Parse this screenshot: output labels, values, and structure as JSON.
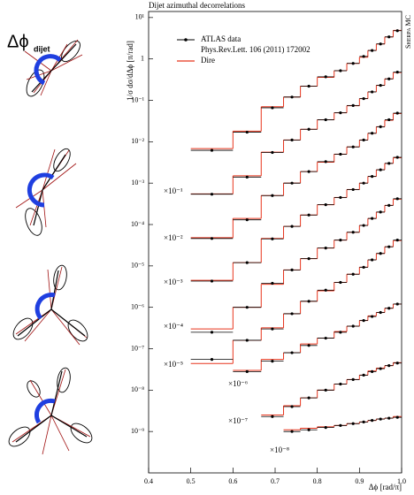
{
  "chart_data": {
    "type": "step",
    "title": "Dijet azimuthal decorrelations",
    "y_label": "1/σ dσ/dΔϕ [π/rad]",
    "x_label": "Δϕ [rad/π]",
    "side_text": "Sherpa MC",
    "side_label": "Δϕ",
    "side_label_sub": "dijet",
    "log_y": true,
    "xlim": [
      0.4,
      1.0
    ],
    "ylim": [
      1e-10,
      14
    ],
    "xticks": [
      0.4,
      0.5,
      0.6,
      0.7,
      0.8,
      0.9,
      {
        "value": 1,
        "label": "1.0"
      }
    ],
    "yticks": [
      {
        "value": 10,
        "label": "10¹"
      },
      1,
      {
        "value": 0.1,
        "label": "10⁻¹"
      },
      {
        "value": 0.01,
        "label": "10⁻²"
      },
      {
        "value": 0.001,
        "label": "10⁻³"
      },
      {
        "value": 0.0001,
        "label": "10⁻⁴"
      },
      {
        "value": 1e-05,
        "label": "10⁻⁵"
      },
      {
        "value": 1e-06,
        "label": "10⁻⁶"
      },
      {
        "value": 1e-07,
        "label": "10⁻⁷"
      },
      {
        "value": 1e-08,
        "label": "10⁻⁸"
      },
      {
        "value": 1e-09,
        "label": "10⁻⁹"
      }
    ],
    "legend": [
      {
        "name": "ATLAS data",
        "color": "#000000"
      },
      {
        "name": "Phys.Rev.Lett. 106 (2011) 172002"
      },
      {
        "name": "Dire",
        "color": "#e8341c"
      }
    ],
    "series": [
      {
        "bins": [
          0.5,
          0.6,
          0.667,
          0.72,
          0.76,
          0.8,
          0.84,
          0.87,
          0.9,
          0.92,
          0.94,
          0.96,
          0.98,
          1.0
        ],
        "values": [
          0.0062,
          0.017,
          0.066,
          0.12,
          0.22,
          0.37,
          0.52,
          0.78,
          1.15,
          1.6,
          2.3,
          3.4,
          4.8
        ],
        "dire": [
          0.0068,
          0.018,
          0.07,
          0.12,
          0.22,
          0.36,
          0.52,
          0.78,
          1.1,
          1.6,
          2.3,
          3.4,
          4.9
        ]
      },
      {
        "scale": "×10⁻¹",
        "bins": [
          0.5,
          0.6,
          0.667,
          0.72,
          0.76,
          0.8,
          0.84,
          0.87,
          0.9,
          0.92,
          0.94,
          0.96,
          0.98,
          1.0
        ],
        "values": [
          0.00054,
          0.0014,
          0.0055,
          0.011,
          0.02,
          0.034,
          0.05,
          0.075,
          0.11,
          0.16,
          0.23,
          0.33,
          0.48
        ],
        "dire": [
          0.00055,
          0.0015,
          0.0056,
          0.011,
          0.02,
          0.034,
          0.05,
          0.074,
          0.11,
          0.16,
          0.23,
          0.33,
          0.47
        ]
      },
      {
        "scale": "×10⁻²",
        "bins": [
          0.5,
          0.6,
          0.667,
          0.72,
          0.76,
          0.8,
          0.84,
          0.87,
          0.9,
          0.92,
          0.94,
          0.96,
          0.98,
          1.0
        ],
        "values": [
          4.6e-05,
          0.00013,
          0.0005,
          0.001,
          0.0019,
          0.0033,
          0.005,
          0.0075,
          0.011,
          0.016,
          0.023,
          0.034,
          0.049
        ],
        "dire": [
          4.8e-05,
          0.00014,
          0.0005,
          0.001,
          0.0019,
          0.0032,
          0.005,
          0.0075,
          0.011,
          0.016,
          0.023,
          0.033,
          0.048
        ]
      },
      {
        "scale": "×10⁻³",
        "bins": [
          0.5,
          0.6,
          0.667,
          0.72,
          0.76,
          0.8,
          0.84,
          0.87,
          0.9,
          0.92,
          0.94,
          0.96,
          0.98,
          1.0
        ],
        "values": [
          4.3e-06,
          1.2e-05,
          4.5e-05,
          9e-05,
          0.00017,
          0.0003,
          0.00045,
          0.0007,
          0.001,
          0.00145,
          0.0021,
          0.003,
          0.0042
        ],
        "dire": [
          4.5e-06,
          1.2e-05,
          4.6e-05,
          9e-05,
          0.00017,
          0.0003,
          0.00045,
          0.0007,
          0.001,
          0.00145,
          0.0021,
          0.003,
          0.0041
        ]
      },
      {
        "scale": "×10⁻⁴",
        "bins": [
          0.5,
          0.6,
          0.667,
          0.72,
          0.76,
          0.8,
          0.84,
          0.87,
          0.9,
          0.92,
          0.94,
          0.96,
          0.98,
          1.0
        ],
        "values": [
          2.5e-07,
          1e-06,
          3.8e-06,
          8e-06,
          1.5e-05,
          2.7e-05,
          4.2e-05,
          6.5e-05,
          9.5e-05,
          0.00014,
          0.0002,
          0.00029,
          0.00042
        ],
        "dire": [
          3e-07,
          1e-06,
          3.6e-06,
          8e-06,
          1.5e-05,
          2.7e-05,
          4.2e-05,
          6.5e-05,
          9.5e-05,
          0.00014,
          0.0002,
          0.00029,
          0.00041
        ]
      },
      {
        "scale": "×10⁻⁵",
        "bins": [
          0.5,
          0.6,
          0.667,
          0.72,
          0.76,
          0.8,
          0.84,
          0.87,
          0.9,
          0.92,
          0.94,
          0.96,
          0.98,
          1.0
        ],
        "values": [
          5.5e-08,
          1.6e-07,
          3e-07,
          7e-07,
          1.4e-06,
          2.6e-06,
          4e-06,
          6.3e-06,
          9.3e-06,
          1.4e-05,
          2e-05,
          2.9e-05,
          4.2e-05
        ],
        "dire": [
          4.4e-08,
          1.6e-07,
          3.2e-07,
          7e-07,
          1.4e-06,
          2.5e-06,
          4e-06,
          6.3e-06,
          9.3e-06,
          1.4e-05,
          2e-05,
          2.9e-05,
          4.1e-05
        ]
      },
      {
        "scale": "×10⁻⁶",
        "bins": [
          0.6,
          0.667,
          0.72,
          0.76,
          0.8,
          0.84,
          0.87,
          0.9,
          0.92,
          0.94,
          0.96,
          0.98,
          1.0
        ],
        "values": [
          2.8e-08,
          5e-08,
          8e-08,
          1.2e-07,
          1.8e-07,
          2.5e-07,
          3.5e-07,
          4.8e-07,
          6e-07,
          7.5e-07,
          9.5e-07,
          1.2e-06
        ],
        "dire": [
          3e-08,
          5.5e-08,
          8e-08,
          1.3e-07,
          1.8e-07,
          2.6e-07,
          3.5e-07,
          4.8e-07,
          6.2e-07,
          7.5e-07,
          9.5e-07,
          1.2e-06
        ]
      },
      {
        "scale": "×10⁻⁷",
        "bins": [
          0.667,
          0.72,
          0.76,
          0.8,
          0.84,
          0.87,
          0.9,
          0.92,
          0.94,
          0.96,
          0.98,
          1.0
        ],
        "values": [
          2.3e-09,
          4e-09,
          6.5e-09,
          1e-08,
          1.4e-08,
          1.8e-08,
          2.3e-08,
          2.8e-08,
          3.3e-08,
          3.9e-08,
          4.5e-08
        ],
        "dire": [
          2.5e-09,
          4.2e-09,
          6.5e-09,
          1e-08,
          1.4e-08,
          1.8e-08,
          2.3e-08,
          2.9e-08,
          3.4e-08,
          3.9e-08,
          4.6e-08
        ]
      },
      {
        "scale": "×10⁻⁸",
        "bins": [
          0.72,
          0.76,
          0.8,
          0.84,
          0.87,
          0.9,
          0.92,
          0.94,
          0.96,
          0.98,
          1.0
        ],
        "values": [
          1e-09,
          1.1e-09,
          1.25e-09,
          1.4e-09,
          1.55e-09,
          1.7e-09,
          1.85e-09,
          2e-09,
          2.1e-09,
          2.2e-09
        ],
        "dire": [
          1.1e-09,
          1.2e-09,
          1.3e-09,
          1.4e-09,
          1.55e-09,
          1.7e-09,
          1.85e-09,
          2e-09,
          2.1e-09,
          2.3e-09
        ]
      }
    ]
  }
}
